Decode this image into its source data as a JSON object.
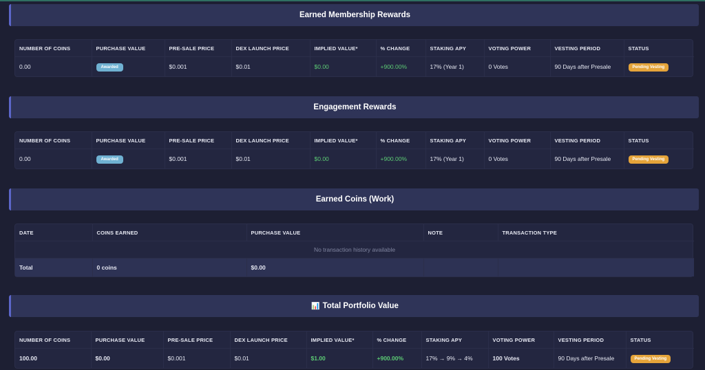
{
  "membership": {
    "title": "Earned Membership Rewards",
    "headers": [
      "NUMBER OF COINS",
      "PURCHASE VALUE",
      "PRE-SALE PRICE",
      "DEX LAUNCH PRICE",
      "IMPLIED VALUE*",
      "% CHANGE",
      "STAKING APY",
      "VOTING POWER",
      "VESTING PERIOD",
      "STATUS"
    ],
    "row": {
      "coins": "0.00",
      "purchase_badge": "Awarded",
      "presale": "$0.001",
      "dex": "$0.01",
      "implied": "$0.00",
      "change": "+900.00%",
      "apy": "17% (Year 1)",
      "voting": "0 Votes",
      "vesting": "90 Days after Presale",
      "status": "Pending Vesting"
    }
  },
  "engagement": {
    "title": "Engagement Rewards",
    "headers": [
      "NUMBER OF COINS",
      "PURCHASE VALUE",
      "PRE-SALE PRICE",
      "DEX LAUNCH PRICE",
      "IMPLIED VALUE*",
      "% CHANGE",
      "STAKING APY",
      "VOTING POWER",
      "VESTING PERIOD",
      "STATUS"
    ],
    "row": {
      "coins": "0.00",
      "purchase_badge": "Awarded",
      "presale": "$0.001",
      "dex": "$0.01",
      "implied": "$0.00",
      "change": "+900.00%",
      "apy": "17% (Year 1)",
      "voting": "0 Votes",
      "vesting": "90 Days after Presale",
      "status": "Pending Vesting"
    }
  },
  "work": {
    "title": "Earned Coins (Work)",
    "headers": [
      "DATE",
      "COINS EARNED",
      "PURCHASE VALUE",
      "NOTE",
      "TRANSACTION TYPE"
    ],
    "empty_message": "No transaction history available",
    "total": {
      "label": "Total",
      "coins": "0 coins",
      "value": "$0.00"
    }
  },
  "portfolio": {
    "icon": "📊",
    "icon_name": "bar-chart-icon",
    "title": "Total Portfolio Value",
    "headers": [
      "NUMBER OF COINS",
      "PURCHASE VALUE",
      "PRE-SALE PRICE",
      "DEX LAUNCH PRICE",
      "IMPLIED VALUE*",
      "% CHANGE",
      "STAKING APY",
      "VOTING POWER",
      "VESTING PERIOD",
      "STATUS"
    ],
    "row": {
      "coins": "100.00",
      "purchase": "$0.00",
      "presale": "$0.001",
      "dex": "$0.01",
      "implied": "$1.00",
      "change": "+900.00%",
      "apy": "17% → 9% → 4%",
      "voting": "100 Votes",
      "vesting": "90 Days after Presale",
      "status": "Pending Vesting"
    }
  },
  "colors": {
    "background": "#1d1f33",
    "header_bg": "#2f3458",
    "accent": "#5c66c9",
    "positive": "#5ccb74",
    "awarded_badge": "#6fb1d2",
    "pending_badge": "#e5a43a"
  }
}
